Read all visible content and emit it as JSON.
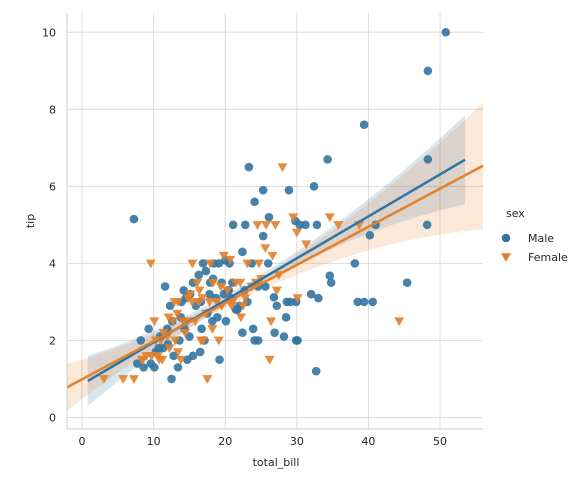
{
  "chart_data": {
    "type": "scatter",
    "xlabel": "total_bill",
    "ylabel": "tip",
    "xlim": [
      -2.1,
      56
    ],
    "ylim": [
      -0.3,
      10.5
    ],
    "xticks": [
      0,
      10,
      20,
      30,
      40,
      50
    ],
    "yticks": [
      0,
      2,
      4,
      6,
      8,
      10
    ],
    "grid": true,
    "legend": {
      "title": "sex",
      "placement": "right"
    },
    "series": [
      {
        "name": "Male",
        "color": "#3274a1",
        "marker": "circle",
        "regression": {
          "x_range": [
            0.8,
            53.5
          ],
          "intercept": 0.86,
          "slope": 0.109
        },
        "points": [
          [
            50.8,
            10
          ],
          [
            48.3,
            9
          ],
          [
            39.4,
            7.6
          ],
          [
            48.3,
            6.7
          ],
          [
            34.3,
            6.7
          ],
          [
            23.3,
            6.5
          ],
          [
            28.9,
            5.9
          ],
          [
            25.3,
            5.9
          ],
          [
            32.4,
            6
          ],
          [
            24.1,
            5.6
          ],
          [
            7.25,
            5.15
          ],
          [
            26.1,
            5.2
          ],
          [
            29.8,
            5.1
          ],
          [
            31.2,
            5
          ],
          [
            30.4,
            5
          ],
          [
            32.8,
            5
          ],
          [
            21.1,
            5
          ],
          [
            22.8,
            5
          ],
          [
            48.2,
            5
          ],
          [
            40.2,
            4.73
          ],
          [
            41,
            5
          ],
          [
            25.3,
            4.71
          ],
          [
            38.1,
            4
          ],
          [
            34.6,
            3.68
          ],
          [
            26,
            4
          ],
          [
            22.4,
            4.3
          ],
          [
            20.6,
            4
          ],
          [
            23.7,
            4
          ],
          [
            20,
            4.08
          ],
          [
            16.9,
            4
          ],
          [
            18.4,
            4
          ],
          [
            21,
            3.5
          ],
          [
            19.5,
            3.5
          ],
          [
            25.6,
            3.4
          ],
          [
            34.8,
            3.5
          ],
          [
            45.4,
            3.5
          ],
          [
            38.5,
            3
          ],
          [
            39.4,
            3
          ],
          [
            40.6,
            3
          ],
          [
            32,
            3.2
          ],
          [
            33,
            3.1
          ],
          [
            28.6,
            3
          ],
          [
            29.9,
            3
          ],
          [
            26.8,
            3.12
          ],
          [
            20.3,
            3.3
          ],
          [
            18.3,
            3.6
          ],
          [
            16.3,
            3.7
          ],
          [
            17.9,
            3.5
          ],
          [
            15.5,
            3.5
          ],
          [
            14.5,
            3.1
          ],
          [
            13.9,
            3
          ],
          [
            15.1,
            3.2
          ],
          [
            17.8,
            3.2
          ],
          [
            20.5,
            3.3
          ],
          [
            23.1,
            3
          ],
          [
            11.6,
            3.4
          ],
          [
            16.6,
            3
          ],
          [
            19.8,
            3.2
          ],
          [
            22,
            2.9
          ],
          [
            27.2,
            2.9
          ],
          [
            21.7,
            2.8
          ],
          [
            18.2,
            2.5
          ],
          [
            18.9,
            2.6
          ],
          [
            20.1,
            2.5
          ],
          [
            22.4,
            2.2
          ],
          [
            15,
            2.1
          ],
          [
            24.1,
            2
          ],
          [
            24.6,
            2
          ],
          [
            28.2,
            2.1
          ],
          [
            29.9,
            2
          ],
          [
            30.1,
            2
          ],
          [
            32.7,
            1.2
          ],
          [
            16.7,
            2.3
          ],
          [
            14.3,
            2.3
          ],
          [
            17.1,
            2
          ],
          [
            19.2,
            1.5
          ],
          [
            16.5,
            1.7
          ],
          [
            15.5,
            1.6
          ],
          [
            13.6,
            2
          ],
          [
            12.8,
            1.6
          ],
          [
            12,
            1.9
          ],
          [
            11.3,
            1.8
          ],
          [
            10.3,
            1.7
          ],
          [
            10.1,
            1.3
          ],
          [
            9.6,
            1.4
          ],
          [
            8.6,
            1.3
          ],
          [
            7.7,
            1.4
          ],
          [
            8.2,
            2
          ],
          [
            9.3,
            2.3
          ],
          [
            10.7,
            1.8
          ],
          [
            12.5,
            1
          ],
          [
            13.4,
            1.3
          ],
          [
            14.7,
            1.5
          ],
          [
            12.6,
            2.5
          ],
          [
            11.9,
            2.3
          ],
          [
            13.8,
            2.6
          ],
          [
            15.9,
            2.9
          ],
          [
            17.5,
            2.7
          ],
          [
            18.7,
            3.1
          ],
          [
            20.8,
            3.1
          ],
          [
            22.7,
            3.3
          ],
          [
            24.6,
            3.4
          ],
          [
            19.1,
            4
          ],
          [
            17.3,
            3.8
          ],
          [
            14.2,
            3.3
          ],
          [
            12.3,
            2.9
          ],
          [
            10.9,
            2.1
          ],
          [
            21.5,
            2.8
          ],
          [
            23.9,
            2.3
          ],
          [
            26.9,
            2.2
          ],
          [
            28.5,
            2.6
          ],
          [
            29.1,
            3
          ]
        ]
      },
      {
        "name": "Female",
        "color": "#e1812c",
        "marker": "triangle-down",
        "regression": {
          "x_range": [
            -2.1,
            56
          ],
          "intercept": 0.99,
          "slope": 0.099
        },
        "points": [
          [
            3.07,
            1
          ],
          [
            5.75,
            1
          ],
          [
            7.25,
            1
          ],
          [
            8.35,
            1.5
          ],
          [
            9.6,
            4
          ],
          [
            10.3,
            2
          ],
          [
            10.1,
            2.5
          ],
          [
            11.2,
            1.5
          ],
          [
            12.7,
            2.5
          ],
          [
            13.4,
            1.7
          ],
          [
            14.1,
            2.5
          ],
          [
            14.8,
            3.1
          ],
          [
            15.4,
            3
          ],
          [
            15.4,
            4
          ],
          [
            16.1,
            3.5
          ],
          [
            16.3,
            3
          ],
          [
            16.8,
            3.1
          ],
          [
            17.3,
            2.7
          ],
          [
            17.5,
            1
          ],
          [
            17.8,
            3
          ],
          [
            18.3,
            3.5
          ],
          [
            18.8,
            3
          ],
          [
            19.4,
            3.4
          ],
          [
            19.8,
            4.2
          ],
          [
            20.3,
            3.3
          ],
          [
            20.7,
            4.1
          ],
          [
            21,
            3
          ],
          [
            21.5,
            3.5
          ],
          [
            22.1,
            3.5
          ],
          [
            22.8,
            3.1
          ],
          [
            22.2,
            2.6
          ],
          [
            23.1,
            4
          ],
          [
            23.7,
            3.4
          ],
          [
            24.3,
            3.5
          ],
          [
            24.7,
            4
          ],
          [
            25.6,
            4.4
          ],
          [
            25.7,
            5
          ],
          [
            26.4,
            2.5
          ],
          [
            27,
            5
          ],
          [
            27.2,
            3.3
          ],
          [
            28,
            6.5
          ],
          [
            29.5,
            5.2
          ],
          [
            30.1,
            3.1
          ],
          [
            31.3,
            4.5
          ],
          [
            34.6,
            5.2
          ],
          [
            35.8,
            5
          ],
          [
            38.7,
            5
          ],
          [
            44.3,
            2.5
          ],
          [
            26.2,
            1.5
          ],
          [
            16.6,
            2
          ],
          [
            12.2,
            1.8
          ],
          [
            11.4,
            2.2
          ],
          [
            9.7,
            1.6
          ],
          [
            10.8,
            1.5
          ],
          [
            13,
            2
          ],
          [
            14.4,
            2.2
          ],
          [
            15.8,
            2.5
          ],
          [
            16.9,
            2
          ],
          [
            18.2,
            2.3
          ],
          [
            19.5,
            2.9
          ],
          [
            20.9,
            2.9
          ],
          [
            13.8,
            1.5
          ],
          [
            11.9,
            2.1
          ],
          [
            9,
            1.6
          ],
          [
            8.5,
            1.5
          ],
          [
            12.1,
            2.6
          ],
          [
            13.4,
            3
          ],
          [
            15.1,
            3.2
          ],
          [
            17.9,
            4
          ],
          [
            24.5,
            5
          ],
          [
            26.6,
            4.2
          ],
          [
            19.1,
            2
          ],
          [
            22.5,
            2.9
          ],
          [
            25,
            3.6
          ],
          [
            27.5,
            3.7
          ],
          [
            30,
            4.8
          ],
          [
            13.3,
            2.7
          ],
          [
            11,
            2
          ],
          [
            10.6,
            1.6
          ],
          [
            12.9,
            3
          ],
          [
            14.8,
            2.5
          ],
          [
            16.4,
            3.3
          ]
        ]
      }
    ]
  }
}
